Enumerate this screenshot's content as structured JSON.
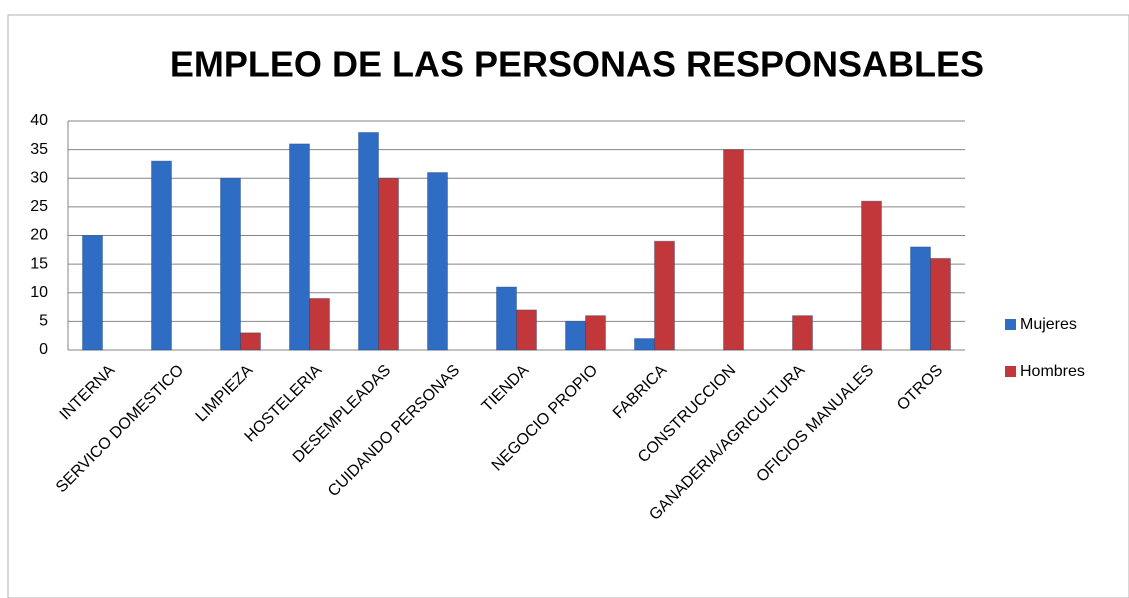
{
  "chart_data": {
    "type": "bar",
    "title": "EMPLEO DE LAS PERSONAS RESPONSABLES",
    "categories": [
      "INTERNA",
      "SERVICO DOMESTICO",
      "LIMPIEZA",
      "HOSTELERIA",
      "DESEMPLEADAS",
      "CUIDANDO PERSONAS",
      "TIENDA",
      "NEGOCIO PROPIO",
      "FABRICA",
      "CONSTRUCCION",
      "GANADERIA/AGRICULTURA",
      "OFICIOS MANUALES",
      "OTROS"
    ],
    "series": [
      {
        "name": "Mujeres",
        "color": "#2f6cc4",
        "values": [
          20,
          33,
          30,
          36,
          38,
          31,
          11,
          5,
          2,
          0,
          0,
          0,
          18
        ]
      },
      {
        "name": "Hombres",
        "color": "#c2383a",
        "values": [
          0,
          0,
          3,
          9,
          30,
          0,
          7,
          6,
          19,
          35,
          6,
          26,
          16
        ]
      }
    ],
    "ylim": [
      0,
      40
    ],
    "yticks": [
      0,
      5,
      10,
      15,
      20,
      25,
      30,
      35,
      40
    ],
    "grid": true,
    "legend": "right"
  }
}
